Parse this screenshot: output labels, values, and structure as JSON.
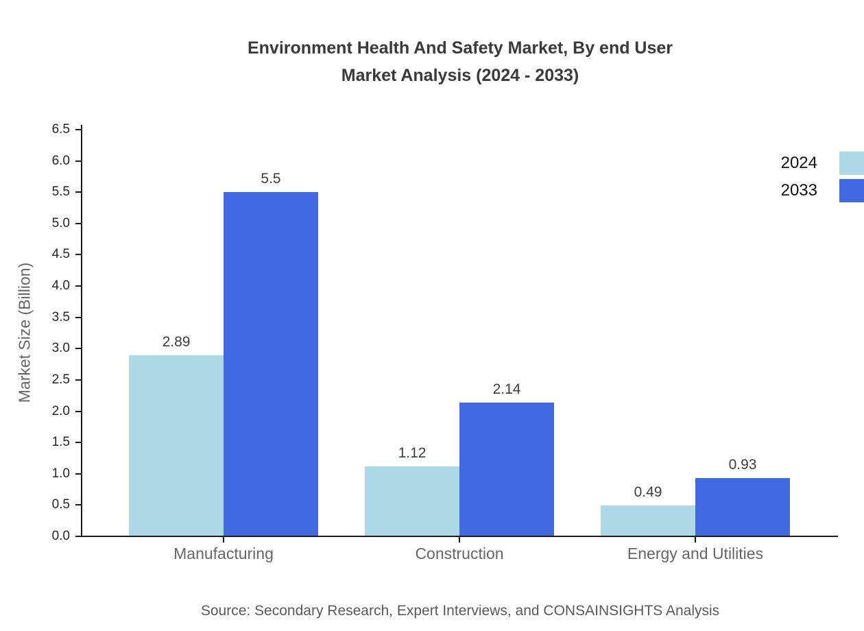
{
  "title": {
    "line1": "Environment Health And Safety Market, By end User",
    "line2": "Market Analysis (2024 - 2033)"
  },
  "source": "Source: Secondary Research, Expert Interviews, and CONSAINSIGHTS Analysis",
  "colors": {
    "series_2024": "#ADD8E6",
    "series_2033": "#4169E1",
    "axis": "#1a1a1a",
    "title_text": "#3a3a3a",
    "muted_text": "#666666",
    "value_text": "#3d3d3d",
    "source_text": "#595959"
  },
  "chart_data": {
    "type": "bar",
    "title": "Environment Health And Safety Market, By end User Market Analysis (2024 - 2033)",
    "categories": [
      "Manufacturing",
      "Construction",
      "Energy and Utilities"
    ],
    "series": [
      {
        "name": "2024",
        "color": "#ADD8E6",
        "values": [
          2.89,
          1.12,
          0.49
        ]
      },
      {
        "name": "2033",
        "color": "#4169E1",
        "values": [
          5.5,
          2.14,
          0.93
        ]
      }
    ],
    "xlabel": "",
    "ylabel": "Market Size (Billion)",
    "ylim": [
      0,
      6.5
    ],
    "ytick_step": 0.5,
    "grid": false,
    "legend_position": "top-right",
    "value_labels": true
  }
}
